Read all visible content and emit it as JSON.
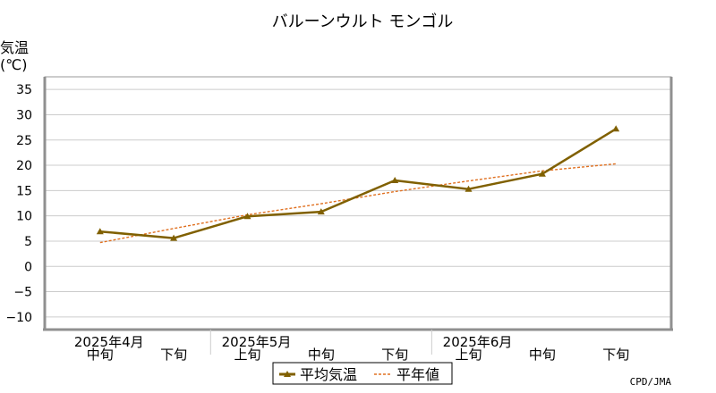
{
  "chart_data": {
    "type": "line",
    "title": "バルーンウルト モンゴル",
    "ylabel": "気温",
    "yunit": "(℃)",
    "ylim": [
      -12.5,
      37.5
    ],
    "yticks": [
      -10,
      -5,
      0,
      5,
      10,
      15,
      20,
      25,
      30,
      35
    ],
    "ytick_labels": [
      "−10",
      "−5",
      "0",
      "5",
      "10",
      "15",
      "20",
      "25",
      "30",
      "35"
    ],
    "grid": true,
    "categories": [
      "中旬",
      "下旬",
      "上旬",
      "中旬",
      "下旬",
      "上旬",
      "中旬",
      "下旬"
    ],
    "month_groups": [
      {
        "label": "2025年4月",
        "start": 0,
        "end": 1
      },
      {
        "label": "2025年5月",
        "start": 2,
        "end": 4
      },
      {
        "label": "2025年6月",
        "start": 5,
        "end": 7
      }
    ],
    "series": [
      {
        "name": "平均気温",
        "color": "#806000",
        "style": "solid",
        "marker": "triangle",
        "values": [
          6.9,
          5.6,
          9.9,
          10.8,
          17.0,
          15.3,
          18.3,
          27.2
        ]
      },
      {
        "name": "平年値",
        "color": "#e07020",
        "style": "dotted",
        "marker": "none",
        "values": [
          4.7,
          7.5,
          10.2,
          12.4,
          14.8,
          16.9,
          18.9,
          20.3
        ]
      }
    ],
    "legend_position": "bottom",
    "source": "CPD/JMA"
  }
}
